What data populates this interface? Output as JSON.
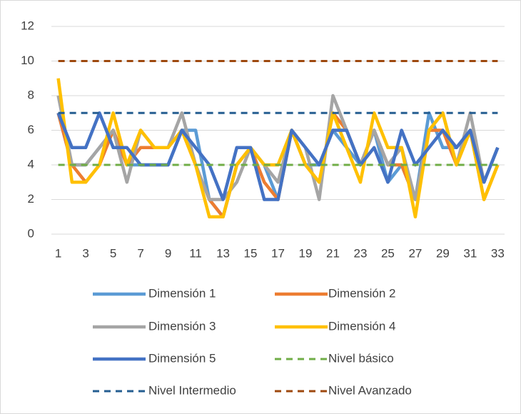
{
  "chart_data": {
    "type": "line",
    "categories": [
      "1",
      null,
      "3",
      null,
      "5",
      null,
      "7",
      null,
      "9",
      null,
      "11",
      null,
      "13",
      null,
      "15",
      null,
      "17",
      null,
      "19",
      null,
      "21",
      null,
      "23",
      null,
      "25",
      null,
      "27",
      null,
      "29",
      null,
      "31",
      null,
      "33"
    ],
    "ylim": [
      0,
      12
    ],
    "yticks": [
      0,
      2,
      4,
      6,
      8,
      10,
      12
    ],
    "grid": true,
    "series": [
      {
        "name": "Dimensión 1",
        "color": "#5b9bd5",
        "values": [
          7,
          4,
          4,
          5,
          6,
          4,
          4,
          4,
          4,
          6,
          6,
          2,
          1,
          4,
          5,
          4,
          2,
          6,
          4,
          4,
          6,
          5,
          4,
          6,
          3,
          4,
          2,
          7,
          5,
          5,
          6,
          3,
          5
        ]
      },
      {
        "name": "Dimensión 2",
        "color": "#ed7d31",
        "values": [
          7,
          4,
          3,
          4,
          6,
          4,
          5,
          5,
          5,
          6,
          4,
          2,
          1,
          4,
          5,
          3,
          2,
          6,
          4,
          3,
          7,
          6,
          4,
          6,
          4,
          4,
          2,
          6,
          6,
          4,
          6,
          2,
          4
        ]
      },
      {
        "name": "Dimensión 3",
        "color": "#a5a5a5",
        "values": [
          8,
          4,
          4,
          5,
          6,
          3,
          6,
          5,
          5,
          7,
          4,
          2,
          2,
          3,
          5,
          4,
          3,
          6,
          5,
          2,
          8,
          6,
          4,
          6,
          4,
          5,
          2,
          6,
          7,
          4,
          7,
          3,
          5
        ]
      },
      {
        "name": "Dimensión 4",
        "color": "#ffc000",
        "values": [
          9,
          3,
          3,
          4,
          7,
          4,
          6,
          5,
          5,
          6,
          4,
          1,
          1,
          4,
          5,
          4,
          4,
          6,
          4,
          3,
          7,
          5,
          3,
          7,
          5,
          5,
          1,
          6,
          7,
          4,
          6,
          2,
          4
        ]
      },
      {
        "name": "Dimensión 5",
        "color": "#4472c4",
        "values": [
          7,
          5,
          5,
          7,
          5,
          5,
          4,
          4,
          4,
          6,
          5,
          4,
          2,
          5,
          5,
          2,
          2,
          6,
          5,
          4,
          6,
          6,
          4,
          5,
          3,
          6,
          4,
          5,
          6,
          5,
          6,
          3,
          5
        ]
      },
      {
        "name": "Nivel básico",
        "color": "#70ad47",
        "dashed": true,
        "values": [
          4,
          4,
          4,
          4,
          4,
          4,
          4,
          4,
          4,
          4,
          4,
          4,
          4,
          4,
          4,
          4,
          4,
          4,
          4,
          4,
          4,
          4,
          4,
          4,
          4,
          4,
          4,
          4,
          4,
          4,
          4,
          4,
          4
        ]
      },
      {
        "name": "Nivel Intermedio",
        "color": "#255e91",
        "dashed": true,
        "values": [
          7,
          7,
          7,
          7,
          7,
          7,
          7,
          7,
          7,
          7,
          7,
          7,
          7,
          7,
          7,
          7,
          7,
          7,
          7,
          7,
          7,
          7,
          7,
          7,
          7,
          7,
          7,
          7,
          7,
          7,
          7,
          7,
          7
        ]
      },
      {
        "name": "Nivel Avanzado",
        "color": "#9e480e",
        "dashed": true,
        "values": [
          10,
          10,
          10,
          10,
          10,
          10,
          10,
          10,
          10,
          10,
          10,
          10,
          10,
          10,
          10,
          10,
          10,
          10,
          10,
          10,
          10,
          10,
          10,
          10,
          10,
          10,
          10,
          10,
          10,
          10,
          10,
          10,
          10
        ]
      }
    ]
  }
}
